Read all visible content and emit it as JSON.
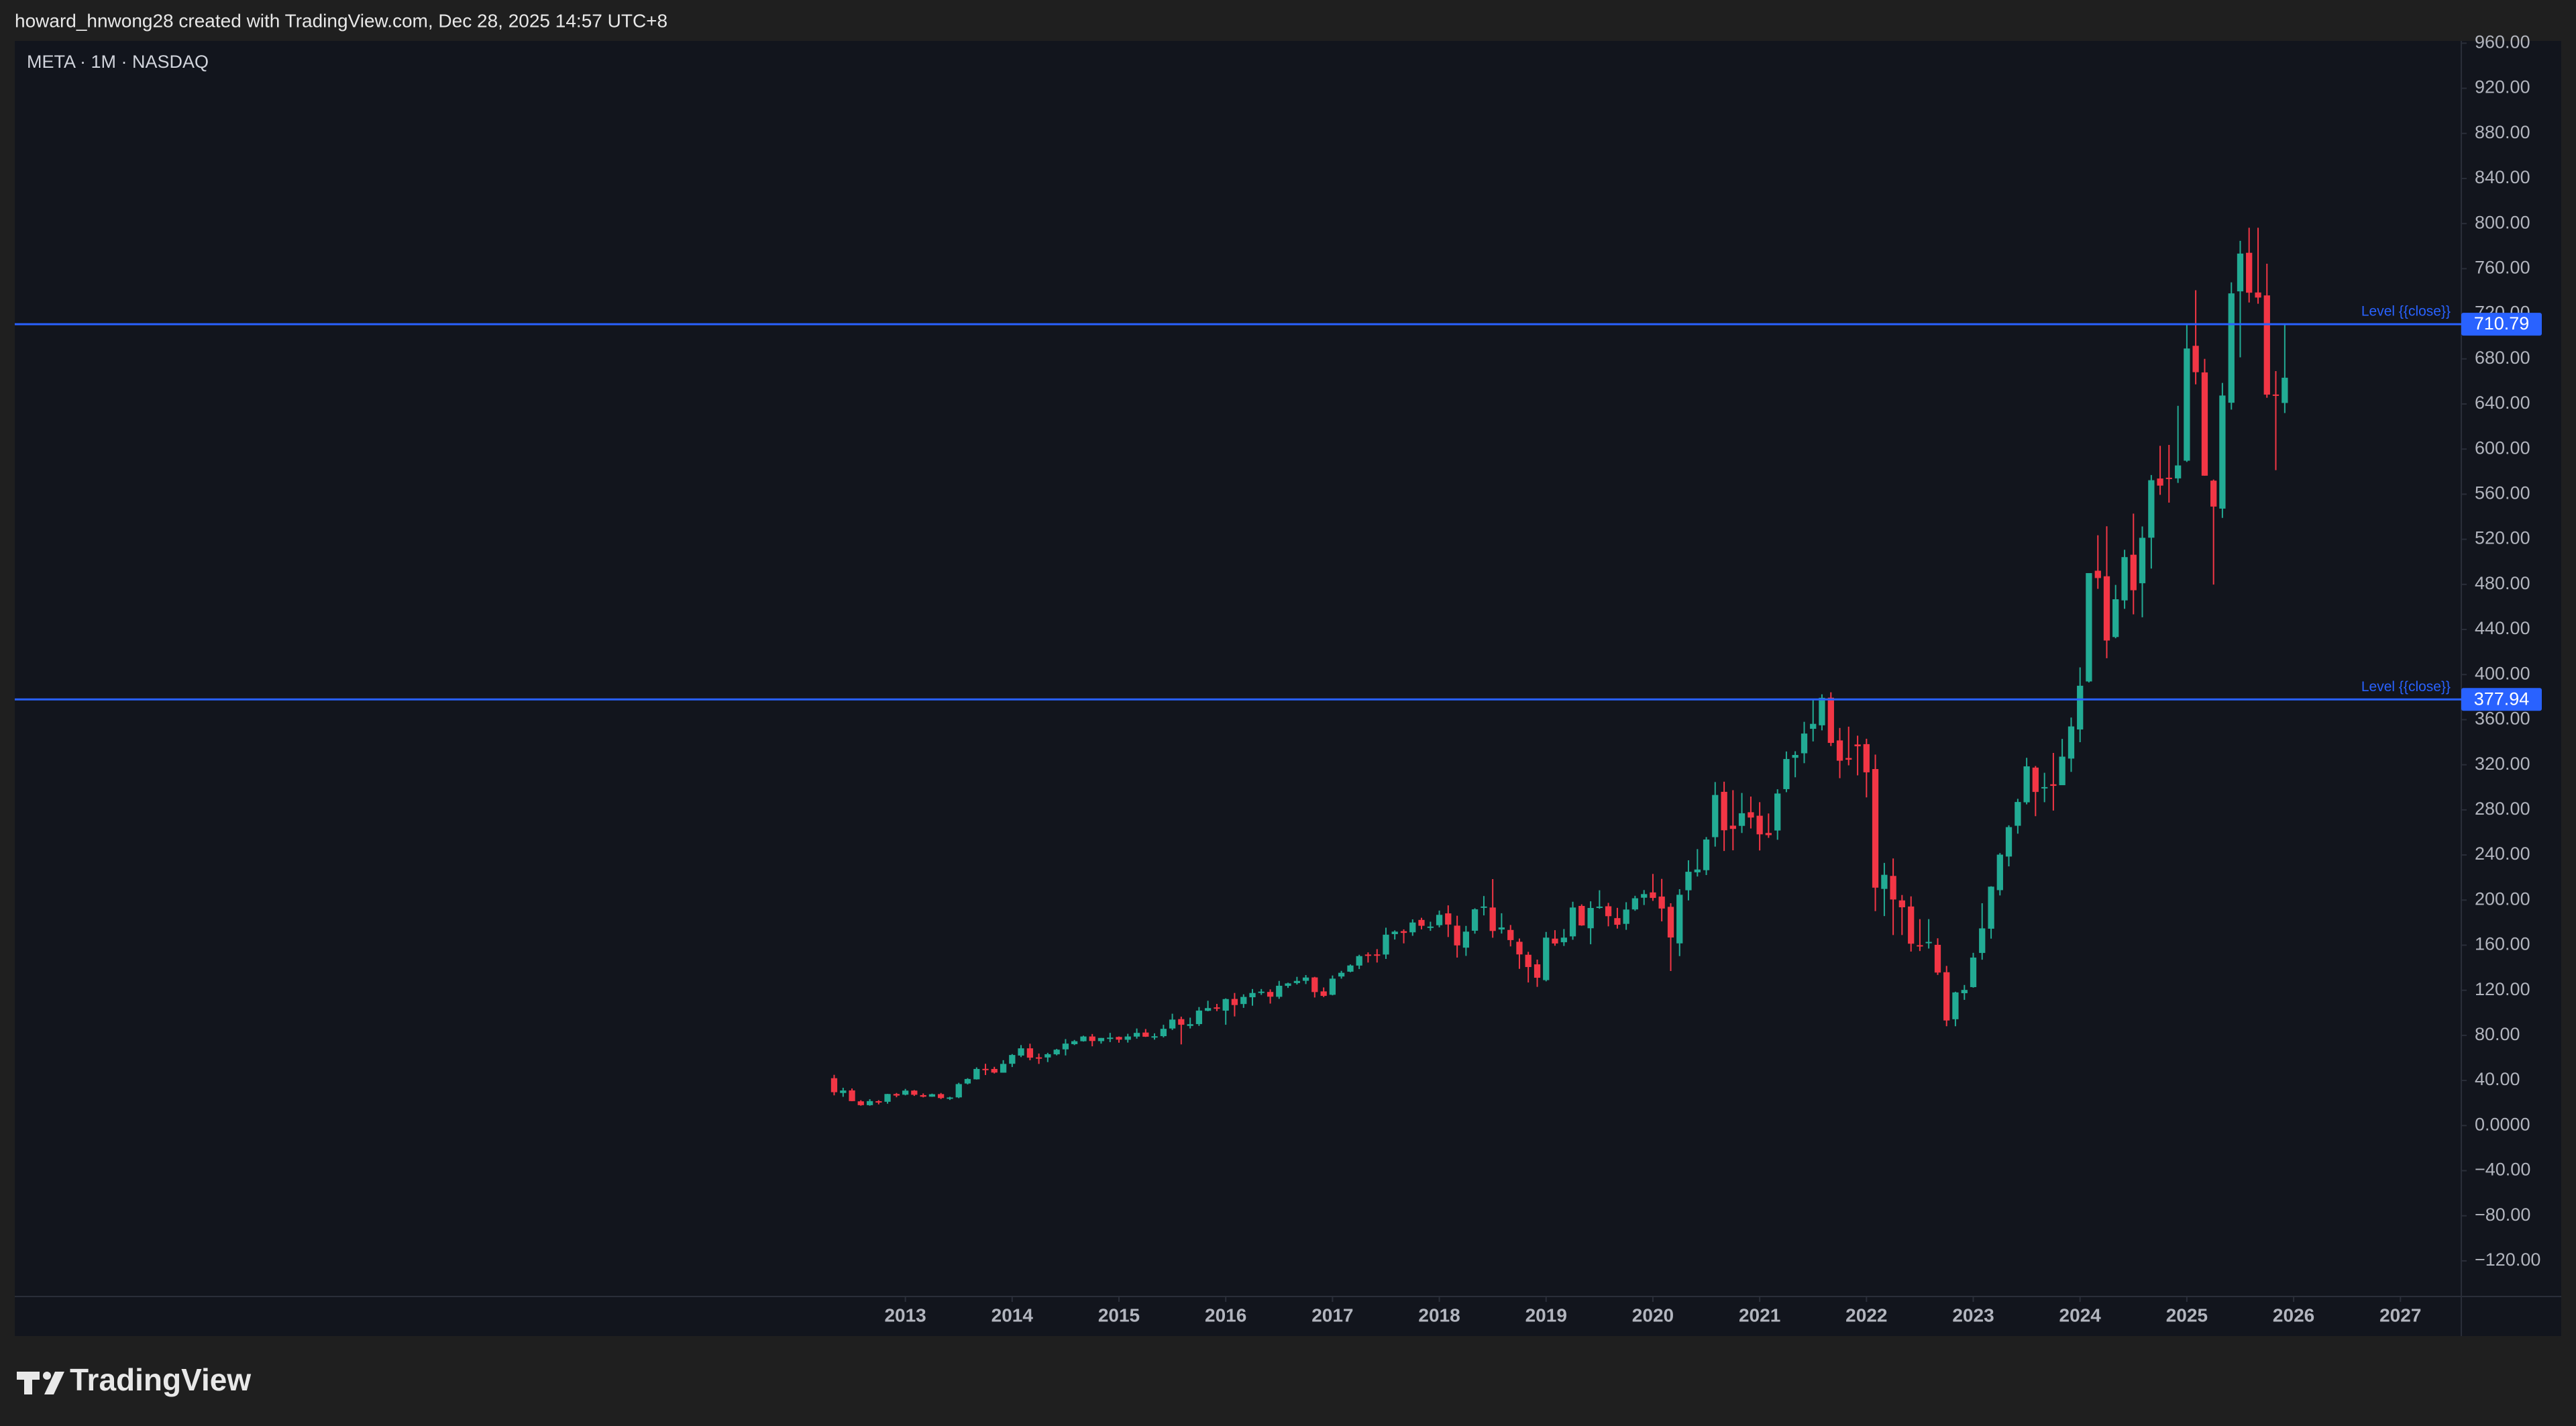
{
  "header": {
    "text": "howard_hnwong28 created with TradingView.com, Dec 28, 2025 14:57 UTC+8"
  },
  "footer": {
    "brand": "TradingView"
  },
  "chart_data": {
    "type": "candlestick",
    "title": "META · 1M · NASDAQ",
    "up_color": "#22ab94",
    "down_color": "#f23645",
    "x": [
      2012.333,
      2012.417,
      2012.5,
      2012.583,
      2012.667,
      2012.75,
      2012.833,
      2012.917,
      2013,
      2013.083,
      2013.167,
      2013.25,
      2013.333,
      2013.417,
      2013.5,
      2013.583,
      2013.667,
      2013.75,
      2013.833,
      2013.917,
      2014,
      2014.083,
      2014.167,
      2014.25,
      2014.333,
      2014.417,
      2014.5,
      2014.583,
      2014.667,
      2014.75,
      2014.833,
      2014.917,
      2015,
      2015.083,
      2015.167,
      2015.25,
      2015.333,
      2015.417,
      2015.5,
      2015.583,
      2015.667,
      2015.75,
      2015.833,
      2015.917,
      2016,
      2016.083,
      2016.167,
      2016.25,
      2016.333,
      2016.417,
      2016.5,
      2016.583,
      2016.667,
      2016.75,
      2016.833,
      2016.917,
      2017,
      2017.083,
      2017.167,
      2017.25,
      2017.333,
      2017.417,
      2017.5,
      2017.583,
      2017.667,
      2017.75,
      2017.833,
      2017.917,
      2018,
      2018.083,
      2018.167,
      2018.25,
      2018.333,
      2018.417,
      2018.5,
      2018.583,
      2018.667,
      2018.75,
      2018.833,
      2018.917,
      2019,
      2019.083,
      2019.167,
      2019.25,
      2019.333,
      2019.417,
      2019.5,
      2019.583,
      2019.667,
      2019.75,
      2019.833,
      2019.917,
      2020,
      2020.083,
      2020.167,
      2020.25,
      2020.333,
      2020.417,
      2020.5,
      2020.583,
      2020.667,
      2020.75,
      2020.833,
      2020.917,
      2021,
      2021.083,
      2021.167,
      2021.25,
      2021.333,
      2021.417,
      2021.5,
      2021.583,
      2021.667,
      2021.75,
      2021.833,
      2021.917,
      2022,
      2022.083,
      2022.167,
      2022.25,
      2022.333,
      2022.417,
      2022.5,
      2022.583,
      2022.667,
      2022.75,
      2022.833,
      2022.917,
      2023,
      2023.083,
      2023.167,
      2023.25,
      2023.333,
      2023.417,
      2023.5,
      2023.583,
      2023.667,
      2023.75,
      2023.833,
      2023.917,
      2024,
      2024.083,
      2024.167,
      2024.25,
      2024.333,
      2024.417,
      2024.5,
      2024.583,
      2024.667,
      2024.75,
      2024.833,
      2024.917,
      2025,
      2025.083,
      2025.167,
      2025.25,
      2025.333,
      2025.417,
      2025.5,
      2025.583,
      2025.667,
      2025.75,
      2025.833,
      2025.917
    ],
    "open": [
      42,
      28.9,
      31.2,
      21.5,
      18.1,
      21.6,
      21.1,
      28,
      27.4,
      31,
      27,
      25.6,
      27.9,
      24.3,
      25,
      37.3,
      41,
      50.3,
      50.2,
      46.9,
      54.8,
      62.1,
      68.5,
      60.5,
      60.4,
      63.2,
      67.6,
      72.2,
      74.8,
      79,
      74.9,
      77.7,
      78.6,
      76.1,
      78.9,
      82.5,
      79,
      79.3,
      86.1,
      94.4,
      88.4,
      90,
      101.8,
      104.8,
      101.9,
      112.3,
      107.8,
      113.8,
      117.8,
      118.5,
      114.2,
      123.9,
      126.4,
      128.4,
      131.4,
      119,
      116,
      132.2,
      136.5,
      141.9,
      151.7,
      151.8,
      151.7,
      169.8,
      172.4,
      171.4,
      182.4,
      176,
      177.7,
      188.2,
      177.3,
      157.8,
      172.8,
      193.1,
      193.4,
      173.9,
      173.5,
      163,
      151.5,
      143,
      129,
      165.8,
      162.6,
      167.8,
      194.8,
      175,
      193.8,
      194.5,
      184,
      178.9,
      191.7,
      202.1,
      206.8,
      203.1,
      194,
      161.6,
      208.7,
      224.6,
      226.5,
      255.8,
      296,
      266,
      265.8,
      277.9,
      274.8,
      259.5,
      261.7,
      298.4,
      326.2,
      330.2,
      351.9,
      355,
      379.5,
      341.6,
      326,
      338,
      338.3,
      316.2,
      209.9,
      221.4,
      199.7,
      194.3,
      160,
      162,
      160.3,
      136,
      94.3,
      117.4,
      122.8,
      153.1,
      174.6,
      208.8,
      238.6,
      265.9,
      286.7,
      317.5,
      299.4,
      302.7,
      301.9,
      325.5,
      351.3,
      393.9,
      492.1,
      487.2,
      433.3,
      465.8,
      506.3,
      481,
      521.4,
      573.9,
      574.6,
      574,
      589.7,
      691.6,
      668,
      572,
      547.2,
      641.1,
      739.9,
      774.1,
      738.9,
      736.3,
      648.4,
      640.9
    ],
    "high": [
      45,
      33.5,
      32.9,
      22.5,
      23.4,
      22.5,
      28.1,
      28.9,
      32.5,
      31.5,
      28.5,
      28.3,
      28.9,
      25.5,
      37.9,
      42,
      51.6,
      54.8,
      52.1,
      58,
      63.4,
      71.4,
      72.6,
      63.9,
      64.5,
      68,
      76.7,
      75.9,
      79.7,
      81.2,
      77.7,
      82.2,
      79,
      81.4,
      86.1,
      85.6,
      81.8,
      89.4,
      99.2,
      96.6,
      95.7,
      105.1,
      110.7,
      107.9,
      112.8,
      117.6,
      116.4,
      121.1,
      121.1,
      120.8,
      128.3,
      126.7,
      131.9,
      133.5,
      131.9,
      122.5,
      133.1,
      137.2,
      142.9,
      151.5,
      153.6,
      156.5,
      175.5,
      173.1,
      174,
      182.9,
      184.3,
      180.8,
      190.7,
      195.3,
      186.1,
      177.1,
      192.7,
      203.6,
      218.6,
      188.3,
      177.9,
      165.9,
      154.1,
      147.2,
      171.7,
      173.3,
      174.3,
      198.5,
      196.2,
      198.9,
      208.7,
      197.5,
      193.1,
      198.1,
      203.8,
      208.9,
      223.2,
      218.8,
      197.2,
      209.7,
      235.3,
      245.2,
      255.9,
      304.7,
      305,
      297.5,
      295,
      291.8,
      286.8,
      276.8,
      298.3,
      331.8,
      332,
      358.1,
      377.6,
      382.5,
      384.3,
      352.7,
      353.8,
      345.8,
      343.1,
      329,
      233,
      236.9,
      204.5,
      203.3,
      183.1,
      183.1,
      166.1,
      141.6,
      118.7,
      124.7,
      153.2,
      197.2,
      212.2,
      241.7,
      266.3,
      289.8,
      326.2,
      318.9,
      312.9,
      330.5,
      342.9,
      361.9,
      406.4,
      490,
      523.6,
      531.5,
      479.5,
      510.7,
      542.8,
      531.4,
      577,
      602.9,
      603.7,
      638.4,
      711.3,
      740.9,
      680,
      573,
      658.7,
      747.9,
      784.7,
      796.3,
      796.3,
      764.4,
      669.2,
      711
    ],
    "low": [
      26.8,
      25.5,
      21.6,
      17.6,
      17.6,
      18.8,
      19.4,
      25.1,
      26.8,
      26.3,
      25,
      25.5,
      23.5,
      22.7,
      24.3,
      36.5,
      40.8,
      44.8,
      46.2,
      46.9,
      51.9,
      60.7,
      57.9,
      54.7,
      56.3,
      62.3,
      62.2,
      71.4,
      74.5,
      70.3,
      72.7,
      74,
      73.5,
      73.6,
      77.1,
      78.6,
      76.2,
      78.2,
      84.8,
      72,
      86.1,
      88.4,
      101.4,
      101.5,
      89.4,
      96.8,
      104.4,
      106.3,
      115.9,
      108.2,
      112.4,
      122.1,
      125.1,
      125.5,
      113.6,
      114,
      115.5,
      130.3,
      136,
      138.8,
      144.6,
      144.6,
      147.8,
      165,
      161.6,
      168.3,
      174,
      172.7,
      175.8,
      167.2,
      149,
      150.5,
      170.2,
      186.4,
      166.6,
      170.3,
      158.9,
      139,
      126.9,
      123,
      127.9,
      159.5,
      159.3,
      164.8,
      177.2,
      160.8,
      192.3,
      176.7,
      174.7,
      173.6,
      190.5,
      195.6,
      199.3,
      181.1,
      137.1,
      150.3,
      199.7,
      220.9,
      222.2,
      247.4,
      243.5,
      244.1,
      259.5,
      263.5,
      244,
      255.2,
      253.5,
      295.7,
      308.9,
      321.4,
      340.7,
      350.5,
      336.6,
      308.1,
      319.5,
      310.6,
      291.1,
      190.2,
      185.8,
      169,
      169,
      154.3,
      154.8,
      157,
      133.6,
      88.1,
      88.1,
      111.5,
      122.3,
      147.1,
      165.8,
      204.1,
      229.9,
      258.9,
      284.9,
      274.4,
      286.8,
      279.4,
      301.9,
      313.7,
      340,
      393,
      476,
      414.5,
      432.2,
      458.3,
      453.4,
      450.8,
      494,
      559.4,
      552.5,
      570,
      588.6,
      657.4,
      576.3,
      479.8,
      539,
      635,
      681.4,
      730,
      728.9,
      645.5,
      581.3,
      632
    ],
    "close": [
      29.6,
      31.1,
      21.7,
      18.1,
      21.7,
      21.1,
      28,
      26.6,
      31,
      27.3,
      25.6,
      27.8,
      24.4,
      24.9,
      36.8,
      41.3,
      50.2,
      50.2,
      47,
      54.7,
      62.6,
      68.5,
      60.2,
      59.8,
      63.3,
      67.3,
      72.7,
      74.8,
      79,
      75,
      77.7,
      78,
      76.2,
      79,
      82.2,
      78.8,
      79.2,
      85.8,
      94,
      89.4,
      89.9,
      102,
      104.2,
      104.7,
      112.2,
      106.9,
      114.1,
      117.6,
      118.8,
      114.3,
      124,
      126.1,
      128.3,
      131.3,
      118.4,
      115,
      130.3,
      135.5,
      142,
      150.3,
      151.5,
      151,
      169.3,
      172,
      170.9,
      180.1,
      177.2,
      176.5,
      186.9,
      178.3,
      159.8,
      172,
      191.8,
      194.3,
      172.6,
      175.7,
      164.5,
      151.8,
      140.6,
      131.1,
      166.7,
      161.5,
      166.7,
      193.4,
      177.5,
      193,
      194.2,
      185.7,
      178.1,
      191.6,
      201.6,
      205.3,
      201.9,
      192.5,
      166.8,
      204.7,
      225.1,
      227.1,
      253.7,
      293.2,
      261.9,
      263.1,
      277,
      273.2,
      258.3,
      257.6,
      294.5,
      325.1,
      328.7,
      347.7,
      356.3,
      379.4,
      339.4,
      323.6,
      324.5,
      336.4,
      313.3,
      211,
      222.4,
      200.5,
      193.6,
      161.3,
      159.1,
      162.9,
      135.7,
      93.2,
      118.1,
      120.3,
      149,
      174.9,
      211.9,
      240.3,
      264.7,
      287,
      318.6,
      295.9,
      300.2,
      301.3,
      327.2,
      354,
      390.1,
      490,
      485.6,
      430.2,
      466.8,
      504.2,
      474.8,
      521.3,
      572.4,
      567.6,
      574.3,
      585.5,
      689.2,
      668.2,
      576.4,
      549,
      647.5,
      738.1,
      773.4,
      738.7,
      734.4,
      648.3,
      648,
      663.3
    ],
    "xlim": [
      2004.66,
      2027.57
    ],
    "xticks": [
      2013,
      2014,
      2015,
      2016,
      2017,
      2018,
      2019,
      2020,
      2021,
      2022,
      2023,
      2024,
      2025,
      2026,
      2027
    ],
    "ylim": [
      -151.6,
      962
    ],
    "yticks": [
      {
        "value": -120,
        "label": "−120.00"
      },
      {
        "value": -80,
        "label": "−80.00"
      },
      {
        "value": -40,
        "label": "−40.00"
      },
      {
        "value": 0,
        "label": "0.0000"
      },
      {
        "value": 40,
        "label": "40.00"
      },
      {
        "value": 80,
        "label": "80.00"
      },
      {
        "value": 120,
        "label": "120.00"
      },
      {
        "value": 160,
        "label": "160.00"
      },
      {
        "value": 200,
        "label": "200.00"
      },
      {
        "value": 240,
        "label": "240.00"
      },
      {
        "value": 280,
        "label": "280.00"
      },
      {
        "value": 320,
        "label": "320.00"
      },
      {
        "value": 360,
        "label": "360.00"
      },
      {
        "value": 400,
        "label": "400.00"
      },
      {
        "value": 440,
        "label": "440.00"
      },
      {
        "value": 480,
        "label": "480.00"
      },
      {
        "value": 520,
        "label": "520.00"
      },
      {
        "value": 560,
        "label": "560.00"
      },
      {
        "value": 600,
        "label": "600.00"
      },
      {
        "value": 640,
        "label": "640.00"
      },
      {
        "value": 680,
        "label": "680.00"
      },
      {
        "value": 720,
        "label": "720.00"
      },
      {
        "value": 760,
        "label": "760.00"
      },
      {
        "value": 800,
        "label": "800.00"
      },
      {
        "value": 840,
        "label": "840.00"
      },
      {
        "value": 880,
        "label": "880.00"
      },
      {
        "value": 920,
        "label": "920.00"
      },
      {
        "value": 960,
        "label": "960.00"
      }
    ],
    "grid": false,
    "levels": [
      {
        "value": 710.79,
        "label": "Level {{close}}",
        "color": "#2962ff"
      },
      {
        "value": 377.94,
        "label": "Level {{close}}",
        "color": "#2962ff"
      }
    ]
  }
}
